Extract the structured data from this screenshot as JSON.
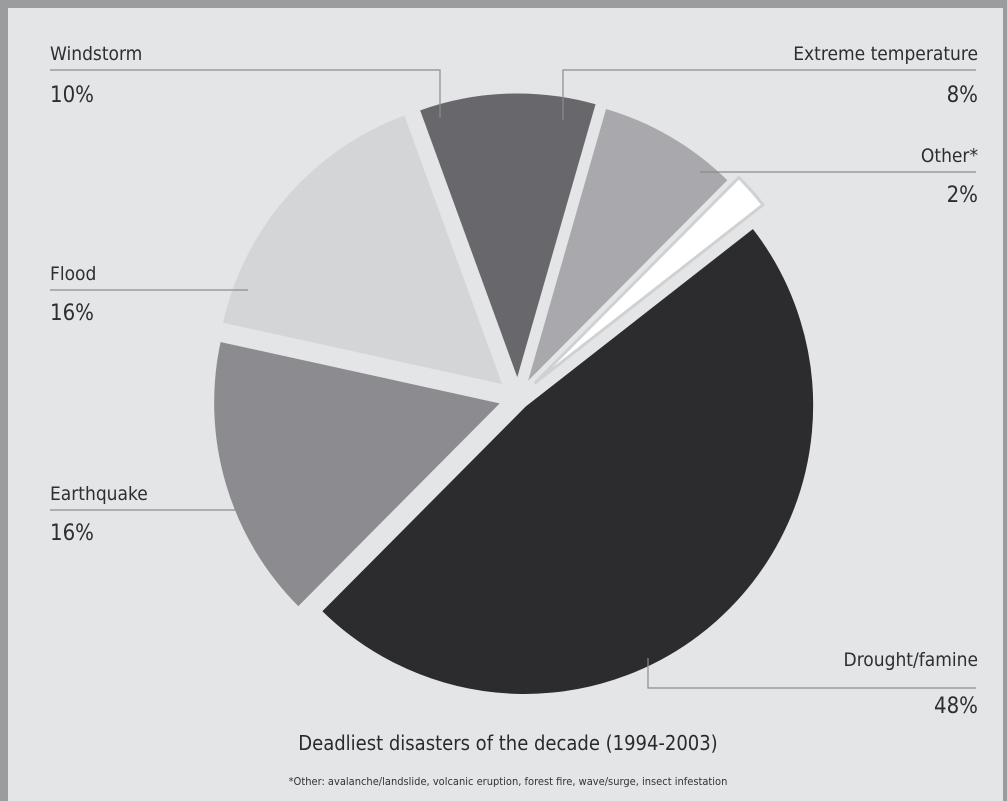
{
  "chart_data": {
    "type": "pie",
    "title": "Deadliest disasters of the decade (1994-2003)",
    "footnote": "*Other: avalanche/landslide, volcanic eruption, forest fire, wave/surge, insect infestation",
    "slices": [
      {
        "label": "Drought/famine",
        "value": 48,
        "display": "48%",
        "color": "#2c2c2e"
      },
      {
        "label": "Earthquake",
        "value": 16,
        "display": "16%",
        "color": "#8c8c90"
      },
      {
        "label": "Flood",
        "value": 16,
        "display": "16%",
        "color": "#d4d5d7"
      },
      {
        "label": "Windstorm",
        "value": 10,
        "display": "10%",
        "color": "#68686c"
      },
      {
        "label": "Extreme temperature",
        "value": 8,
        "display": "8%",
        "color": "#a9a9ad"
      },
      {
        "label": "Other*",
        "value": 2,
        "display": "2%",
        "color": "#ffffff"
      }
    ],
    "legend": "callouts"
  }
}
